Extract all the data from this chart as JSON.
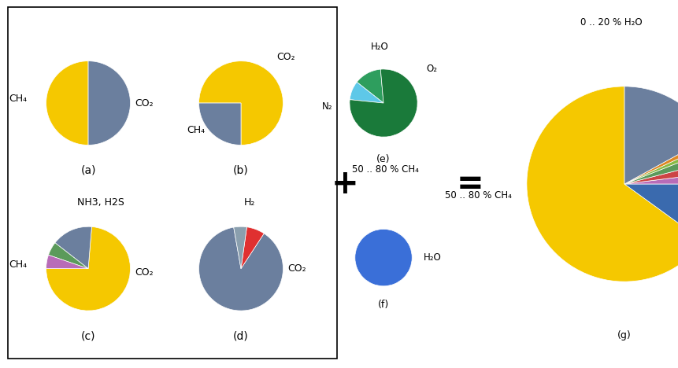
{
  "chart_a": {
    "sizes": [
      50,
      50
    ],
    "colors": [
      "#f5c800",
      "#6b7f9e"
    ],
    "labels": [
      "CH₄",
      "CO₂"
    ],
    "startangle": 90
  },
  "chart_b": {
    "sizes": [
      75,
      25
    ],
    "colors": [
      "#f5c800",
      "#6b7f9e"
    ],
    "labels": [
      "CH₄",
      "CO₂"
    ],
    "startangle": 270
  },
  "chart_c": {
    "sizes": [
      70,
      15,
      5,
      5
    ],
    "colors": [
      "#f5c800",
      "#6b7f9e",
      "#5b9a5b",
      "#b86cb8"
    ],
    "labels": [
      "CH₄",
      "CO₂",
      "",
      "NH3, H2S"
    ],
    "startangle": 180
  },
  "chart_d": {
    "sizes": [
      88,
      7,
      5
    ],
    "colors": [
      "#6b7f9e",
      "#e03030",
      "#8a9fae"
    ],
    "labels": [
      "CO₂",
      "H₂",
      ""
    ],
    "startangle": 100
  },
  "chart_e": {
    "sizes": [
      13,
      9,
      78
    ],
    "colors": [
      "#2e9e5e",
      "#5ec8e8",
      "#1a7a3a"
    ],
    "labels": [
      "H₂O",
      "O₂",
      "N₂"
    ],
    "startangle": 95
  },
  "chart_f": {
    "color": "#3a6fd8",
    "label": "H₂O"
  },
  "chart_g": {
    "sizes": [
      65,
      10,
      2,
      2,
      2,
      1,
      1,
      17
    ],
    "colors": [
      "#f5c800",
      "#3a6aae",
      "#b86cb8",
      "#cc4444",
      "#5b9a5b",
      "#88bb44",
      "#dd8822",
      "#6b7f9e"
    ],
    "startangle": 90
  },
  "background": "#ffffff"
}
